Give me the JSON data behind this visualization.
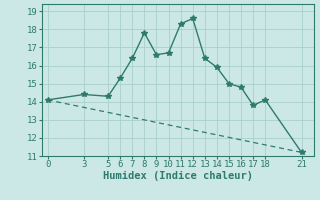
{
  "xlabel": "Humidex (Indice chaleur)",
  "background_color": "#cce8e6",
  "line_color": "#2e7a6e",
  "grid_color": "#aacfcc",
  "curve1_x": [
    0,
    3,
    5,
    6,
    7,
    8,
    9,
    10,
    11,
    12,
    13,
    14,
    15,
    16,
    17,
    18,
    21
  ],
  "curve1_y": [
    14.1,
    14.4,
    14.3,
    15.3,
    16.4,
    17.8,
    16.6,
    16.7,
    18.3,
    18.6,
    16.4,
    15.9,
    15.0,
    14.8,
    13.8,
    14.1,
    11.2
  ],
  "curve2_x": [
    0,
    21
  ],
  "curve2_y": [
    14.1,
    11.2
  ],
  "xlim": [
    -0.5,
    22
  ],
  "ylim": [
    11,
    19.4
  ],
  "xticks": [
    0,
    3,
    5,
    6,
    7,
    8,
    9,
    10,
    11,
    12,
    13,
    14,
    15,
    16,
    17,
    18,
    21
  ],
  "yticks": [
    11,
    12,
    13,
    14,
    15,
    16,
    17,
    18,
    19
  ],
  "tick_fontsize": 6.5,
  "xlabel_fontsize": 7.5
}
